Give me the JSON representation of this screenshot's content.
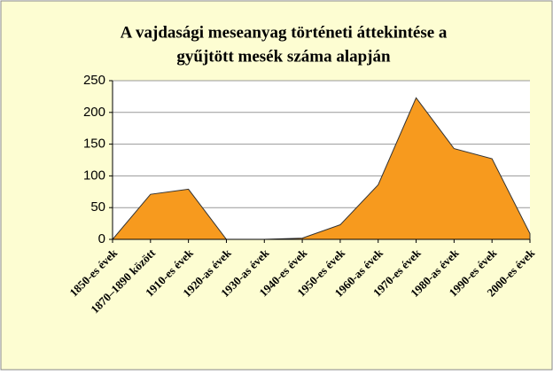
{
  "chart_data": {
    "type": "area",
    "title": [
      "A vajdasági meseanyag történeti áttekintése a",
      "gyűjtött mesék száma alapján"
    ],
    "categories": [
      "1850-es évek",
      "1870–1890 között",
      "1910-es évek",
      "1920-as évek",
      "1930-as évek",
      "1940-es évek",
      "1950-es évek",
      "1960-as évek",
      "1970-es évek",
      "1980-as évek",
      "1990-es évek",
      "2000-es évek"
    ],
    "values": [
      0,
      71,
      79,
      0,
      0,
      2,
      23,
      86,
      223,
      143,
      127,
      9
    ],
    "color": "#f79a1e",
    "ylim": [
      0,
      250
    ],
    "yticks": [
      0,
      50,
      100,
      150,
      200,
      250
    ],
    "grid": true
  }
}
